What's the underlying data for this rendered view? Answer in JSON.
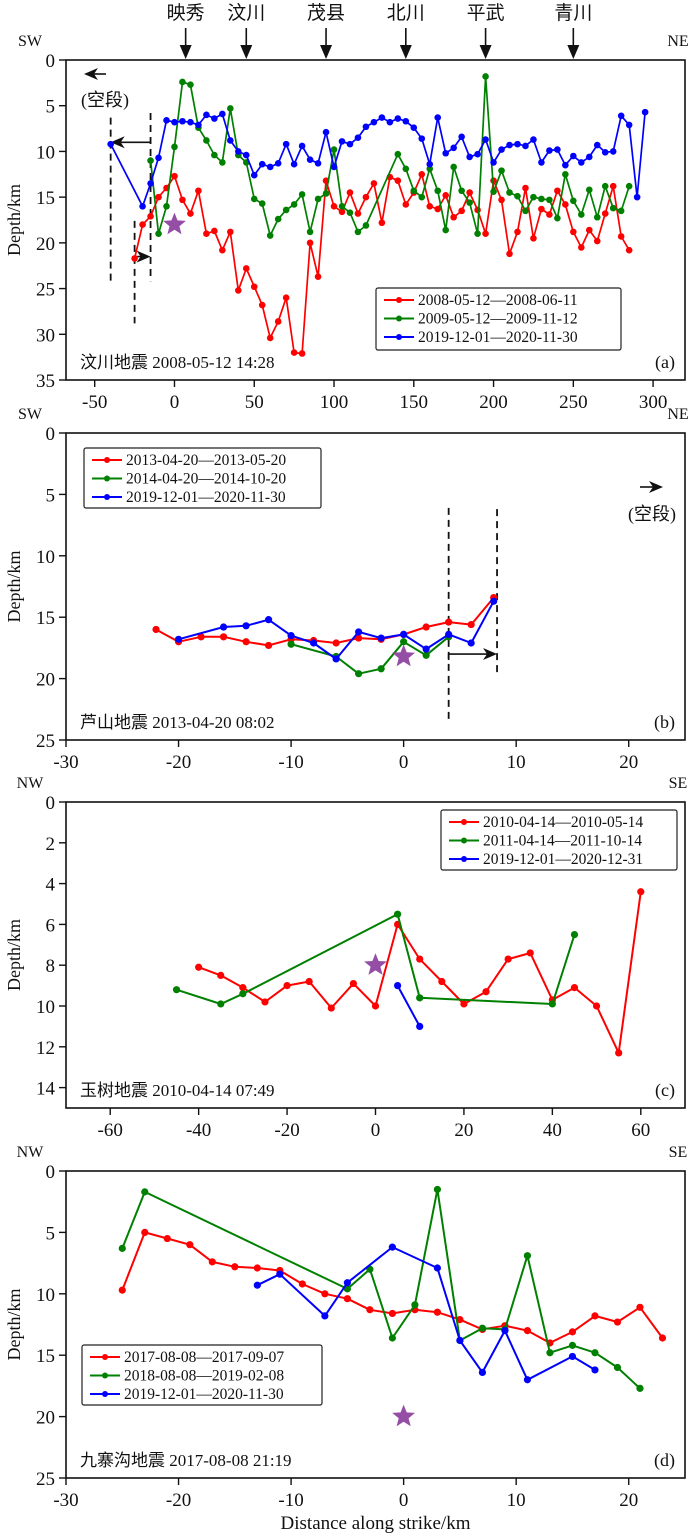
{
  "colors": {
    "red": "#ff0000",
    "green": "#008000",
    "blue": "#0000ff",
    "star": "#8e44a0",
    "axis": "#111111"
  },
  "chart_data": [
    {
      "type": "line",
      "panel_label": "(a)",
      "annotation": "汶川地震 2008-05-12 14:28",
      "xlabel": "",
      "ylabel": "Depth/km",
      "xlim": [
        -68,
        320
      ],
      "ylim": [
        0,
        35
      ],
      "y_inverted": true,
      "xticks": [
        -50,
        0,
        50,
        100,
        150,
        200,
        250,
        300
      ],
      "yticks": [
        0,
        5,
        10,
        15,
        20,
        25,
        30,
        35
      ],
      "direction_left": "SW",
      "direction_right": "NE",
      "grid": false,
      "legend_position": "bottom-right",
      "towns": [
        {
          "name": "映秀",
          "x": 7
        },
        {
          "name": "汶川",
          "x": 45
        },
        {
          "name": "茂县",
          "x": 95
        },
        {
          "name": "北川",
          "x": 145
        },
        {
          "name": "平武",
          "x": 195
        },
        {
          "name": "青川",
          "x": 250
        }
      ],
      "epicenter": {
        "x": 0,
        "depth": 18
      },
      "gap_label": "(空段)",
      "gap_markers": {
        "dashed_x": [
          -40,
          -15,
          -25,
          -15
        ],
        "arrows": [
          {
            "from": -15,
            "to": -40,
            "depth": 9
          },
          {
            "from": -25,
            "to": -15,
            "depth": 21.5
          }
        ],
        "gap_arrow_direction": "left"
      },
      "series": [
        {
          "name": "2008-05-12—2008-06-11",
          "color": "red",
          "x": [
            -25,
            -20,
            -15,
            -10,
            -5,
            0,
            5,
            10,
            15,
            20,
            25,
            30,
            35,
            40,
            45,
            50,
            55,
            60,
            65,
            70,
            75,
            80,
            85,
            90,
            95,
            100,
            105,
            110,
            115,
            120,
            125,
            130,
            135,
            140,
            145,
            150,
            155,
            160,
            165,
            170,
            175,
            180,
            185,
            190,
            195,
            200,
            205,
            210,
            215,
            220,
            225,
            230,
            235,
            240,
            245,
            250,
            255,
            260,
            265,
            270,
            275,
            280,
            285
          ],
          "y": [
            21.7,
            18,
            17.1,
            15,
            14,
            12.7,
            15.3,
            16.8,
            14.3,
            19,
            18.7,
            20.8,
            18.8,
            25.2,
            22.8,
            24.8,
            26.8,
            30.4,
            28.6,
            26,
            32,
            32.1,
            20,
            23.7,
            13.2,
            16,
            16.6,
            14.5,
            16.8,
            15,
            13.5,
            17.8,
            12.8,
            13.2,
            15.8,
            14.5,
            12.5,
            16,
            16.3,
            14.8,
            17.2,
            16.5,
            14.5,
            16.4,
            19,
            13.2,
            15.3,
            21.2,
            18.8,
            14,
            19.5,
            16.3,
            16.9,
            14.3,
            15.8,
            18.8,
            20.5,
            18.6,
            19.8,
            16.8,
            13.8,
            19.3,
            20.8
          ]
        },
        {
          "name": "2009-05-12—2009-11-12",
          "color": "green",
          "x": [
            -15,
            -10,
            -5,
            0,
            5,
            10,
            15,
            20,
            25,
            30,
            35,
            40,
            45,
            50,
            55,
            60,
            65,
            70,
            75,
            80,
            85,
            90,
            95,
            100,
            105,
            110,
            115,
            120,
            140,
            145,
            150,
            155,
            160,
            165,
            170,
            175,
            180,
            185,
            190,
            195,
            200,
            205,
            210,
            215,
            220,
            225,
            230,
            235,
            240,
            245,
            250,
            255,
            260,
            265,
            270,
            275,
            280,
            285
          ],
          "y": [
            11,
            19,
            16,
            9.5,
            2.4,
            2.7,
            7.4,
            8.8,
            10.4,
            11.2,
            5.3,
            10.4,
            11.2,
            15.2,
            15.7,
            19.2,
            17.4,
            16.4,
            15.8,
            14.7,
            18.8,
            15.2,
            14.6,
            9.8,
            16,
            16.7,
            18.8,
            18.1,
            10.3,
            11.9,
            14.3,
            15,
            11.9,
            14.3,
            18.6,
            11.7,
            14.3,
            15.6,
            19,
            1.8,
            14.4,
            12.1,
            14.5,
            14.9,
            16.5,
            15,
            15.2,
            15.3,
            17.3,
            12.5,
            15.4,
            16.9,
            14.2,
            17.2,
            13.8,
            16.2,
            16.5,
            13.8
          ]
        },
        {
          "name": "2019-12-01—2020-11-30",
          "color": "blue",
          "x": [
            -40,
            -20,
            -15,
            -10,
            -5,
            0,
            5,
            10,
            15,
            20,
            25,
            30,
            35,
            40,
            45,
            50,
            55,
            60,
            65,
            70,
            75,
            80,
            85,
            90,
            95,
            100,
            105,
            110,
            115,
            120,
            125,
            130,
            135,
            140,
            145,
            150,
            155,
            160,
            165,
            170,
            175,
            180,
            185,
            190,
            195,
            200,
            205,
            210,
            215,
            220,
            225,
            230,
            235,
            240,
            245,
            250,
            255,
            260,
            265,
            270,
            275,
            280,
            285,
            290,
            295
          ],
          "y": [
            9.2,
            16,
            13.5,
            10.7,
            6.6,
            6.8,
            6.7,
            6.8,
            7.1,
            6,
            6.4,
            5.9,
            8.8,
            10,
            10.4,
            12.6,
            11.4,
            11.7,
            11.3,
            9.2,
            11.4,
            9.4,
            10.9,
            11.3,
            7.9,
            11.7,
            8.9,
            9.2,
            8.5,
            7.3,
            6.8,
            6.3,
            6.8,
            6.4,
            6.7,
            7.4,
            8.6,
            11.4,
            6.3,
            10.2,
            9.6,
            8.4,
            10.6,
            10.3,
            8.7,
            11.2,
            9.8,
            9.3,
            9.2,
            9.4,
            8.7,
            11.2,
            9.9,
            9.8,
            11.5,
            10.5,
            11.2,
            10.6,
            9.3,
            10.1,
            10,
            6.1,
            7.1,
            15,
            5.7
          ]
        }
      ]
    },
    {
      "type": "line",
      "panel_label": "(b)",
      "annotation": "芦山地震 2013-04-20 08:02",
      "xlabel": "",
      "ylabel": "Depth/km",
      "xlim": [
        -30,
        25
      ],
      "ylim": [
        0,
        25
      ],
      "y_inverted": true,
      "xticks": [
        -30,
        -20,
        -10,
        0,
        10,
        20
      ],
      "yticks": [
        0,
        5,
        10,
        15,
        20,
        25
      ],
      "direction_left": "SW",
      "direction_right": "NE",
      "grid": false,
      "legend_position": "top-left",
      "epicenter": {
        "x": 0,
        "depth": 18.2
      },
      "gap_label": "(空段)",
      "gap_markers": {
        "dashed_x": [
          4,
          8.3
        ],
        "arrows": [
          {
            "from": 4,
            "to": 8.3,
            "depth": 18
          }
        ],
        "gap_arrow_direction": "right"
      },
      "series": [
        {
          "name": "2013-04-20—2013-05-20",
          "color": "red",
          "x": [
            -22,
            -20,
            -18,
            -16,
            -14,
            -12,
            -10,
            -8,
            -6,
            -4,
            -2,
            0,
            2,
            4,
            6,
            8
          ],
          "y": [
            16,
            17,
            16.6,
            16.6,
            17,
            17.3,
            16.8,
            16.9,
            17.1,
            16.7,
            16.8,
            16.4,
            15.8,
            15.4,
            15.6,
            13.4
          ]
        },
        {
          "name": "2014-04-20—2014-10-20",
          "color": "green",
          "x": [
            -10,
            -6,
            -4,
            -2,
            0,
            2,
            4
          ],
          "y": [
            17.2,
            18.2,
            19.6,
            19.2,
            17,
            18.1,
            16.6
          ]
        },
        {
          "name": "2019-12-01—2020-11-30",
          "color": "blue",
          "x": [
            -20,
            -16,
            -14,
            -12,
            -10,
            -8,
            -6,
            -4,
            -2,
            0,
            2,
            4,
            6,
            8
          ],
          "y": [
            16.8,
            15.8,
            15.7,
            15.2,
            16.5,
            17.1,
            18.4,
            16.2,
            16.7,
            16.4,
            17.6,
            16.4,
            17.1,
            13.7
          ]
        }
      ]
    },
    {
      "type": "line",
      "panel_label": "(c)",
      "annotation": "玉树地震 2010-04-14 07:49",
      "xlabel": "",
      "ylabel": "Depth/km",
      "xlim": [
        -70,
        70
      ],
      "ylim": [
        0,
        15
      ],
      "y_inverted": true,
      "xticks": [
        -60,
        -40,
        -20,
        0,
        20,
        40,
        60
      ],
      "yticks": [
        0,
        2,
        4,
        6,
        8,
        10,
        12,
        14
      ],
      "direction_left": "NW",
      "direction_right": "SE",
      "grid": false,
      "legend_position": "top-right",
      "epicenter": {
        "x": 0,
        "depth": 8
      },
      "series": [
        {
          "name": "2010-04-14—2010-05-14",
          "color": "red",
          "x": [
            -40,
            -35,
            -30,
            -25,
            -20,
            -15,
            -10,
            -5,
            0,
            5,
            10,
            15,
            20,
            25,
            30,
            35,
            40,
            45,
            50,
            55,
            60
          ],
          "y": [
            8.1,
            8.5,
            9.1,
            9.8,
            9,
            8.8,
            10.1,
            8.9,
            10,
            6,
            7.7,
            8.8,
            9.9,
            9.3,
            7.7,
            7.4,
            9.7,
            9.1,
            10,
            12.3,
            4.4
          ]
        },
        {
          "name": "2011-04-14—2011-10-14",
          "color": "green",
          "x": [
            -45,
            -35,
            -30,
            5,
            10,
            40,
            45
          ],
          "y": [
            9.2,
            9.9,
            9.4,
            5.5,
            9.6,
            9.9,
            6.5
          ]
        },
        {
          "name": "2019-12-01—2020-12-31",
          "color": "blue",
          "x": [
            5,
            10
          ],
          "y": [
            9,
            11
          ]
        }
      ]
    },
    {
      "type": "line",
      "panel_label": "(d)",
      "annotation": "九寨沟地震 2017-08-08 21:19",
      "xlabel": "Distance along strike/km",
      "ylabel": "Depth/km",
      "xlim": [
        -30,
        25
      ],
      "ylim": [
        0,
        25
      ],
      "y_inverted": true,
      "xticks": [
        -30,
        -20,
        -10,
        0,
        10,
        20
      ],
      "yticks": [
        0,
        5,
        10,
        15,
        20,
        25
      ],
      "direction_left": "NW",
      "direction_right": "SE",
      "grid": false,
      "legend_position": "center-left",
      "epicenter": {
        "x": 0,
        "depth": 20
      },
      "series": [
        {
          "name": "2017-08-08—2017-09-07",
          "color": "red",
          "x": [
            -25,
            -23,
            -21,
            -19,
            -17,
            -15,
            -13,
            -11,
            -9,
            -7,
            -5,
            -3,
            -1,
            1,
            3,
            5,
            7,
            9,
            11,
            13,
            15,
            17,
            19,
            21,
            23
          ],
          "y": [
            9.7,
            5,
            5.5,
            6,
            7.4,
            7.8,
            7.9,
            8.1,
            9.2,
            10,
            10.4,
            11.3,
            11.6,
            11.3,
            11.5,
            12.1,
            12.9,
            12.6,
            13,
            14,
            13.1,
            11.8,
            12.3,
            11.1,
            13.6
          ]
        },
        {
          "name": "2018-08-08—2019-02-08",
          "color": "green",
          "x": [
            -25,
            -23,
            -5,
            -3,
            -1,
            1,
            3,
            5,
            7,
            9,
            11,
            13,
            15,
            17,
            19,
            21
          ],
          "y": [
            6.3,
            1.7,
            9.6,
            8,
            13.6,
            10.9,
            1.5,
            13.8,
            12.8,
            12.9,
            6.9,
            14.8,
            14.2,
            14.8,
            16,
            17.7
          ]
        },
        {
          "name": "2019-12-01—2020-11-30",
          "color": "blue",
          "x": [
            -13,
            -11,
            -7,
            -5,
            -1,
            3,
            5,
            7,
            9,
            11,
            15,
            17
          ],
          "y": [
            9.3,
            8.4,
            11.8,
            9.1,
            6.2,
            7.9,
            13.8,
            16.4,
            13,
            17,
            15.1,
            16.2
          ]
        }
      ]
    }
  ]
}
